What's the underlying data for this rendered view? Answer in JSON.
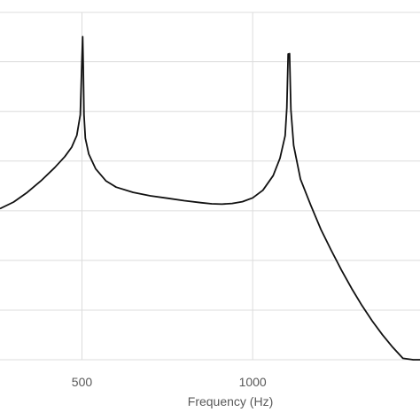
{
  "chart_data": {
    "type": "line",
    "title": "",
    "xlabel": "Frequency (Hz)",
    "ylabel": "",
    "x_ticks": [
      500,
      1000
    ],
    "xlim": [
      260,
      1490
    ],
    "ylim": [
      0,
      1
    ],
    "grid": {
      "vertical": true,
      "horizontal": true
    },
    "horizontal_grid_levels": [
      0.0,
      0.143,
      0.286,
      0.429,
      0.572,
      0.715,
      0.858,
      1.0
    ],
    "y_note": "relative magnitude; y-axis tick labels not visible in the screenshot",
    "series": [
      {
        "color": "#111111",
        "x": [
          260,
          300,
          340,
          380,
          420,
          450,
          470,
          485,
          495,
          500,
          502,
          504,
          506,
          510,
          520,
          540,
          570,
          600,
          650,
          700,
          750,
          800,
          850,
          880,
          910,
          940,
          970,
          1000,
          1030,
          1060,
          1080,
          1095,
          1100,
          1104,
          1108,
          1112,
          1120,
          1140,
          1170,
          1200,
          1230,
          1260,
          1290,
          1320,
          1350,
          1380,
          1410,
          1440,
          1470,
          1490
        ],
        "y": [
          0.435,
          0.454,
          0.482,
          0.515,
          0.553,
          0.585,
          0.612,
          0.646,
          0.705,
          0.867,
          0.93,
          0.84,
          0.705,
          0.638,
          0.592,
          0.55,
          0.515,
          0.497,
          0.482,
          0.472,
          0.465,
          0.458,
          0.452,
          0.449,
          0.448,
          0.45,
          0.455,
          0.466,
          0.488,
          0.53,
          0.58,
          0.645,
          0.725,
          0.88,
          0.881,
          0.72,
          0.617,
          0.52,
          0.445,
          0.375,
          0.315,
          0.258,
          0.205,
          0.156,
          0.112,
          0.072,
          0.036,
          0.004,
          0.0,
          0.0
        ]
      }
    ]
  }
}
